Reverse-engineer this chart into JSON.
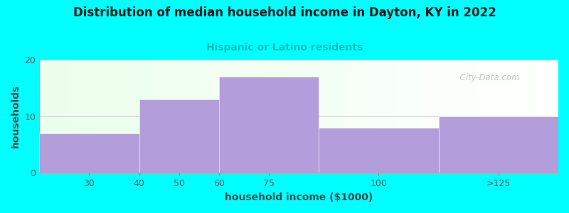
{
  "title": "Distribution of median household income in Dayton, KY in 2022",
  "subtitle": "Hispanic or Latino residents",
  "subtitle_color": "#00b8b8",
  "title_color": "#1a1a1a",
  "xlabel": "household income ($1000)",
  "ylabel": "households",
  "bar_color": "#b39ddb",
  "bar_edgecolor": "#e8e8f8",
  "background_outer": "#00ffff",
  "ylim": [
    0,
    20
  ],
  "yticks": [
    0,
    10,
    20
  ],
  "bin_edges": [
    15,
    40,
    60,
    85,
    115,
    145
  ],
  "bar_heights": [
    7,
    13,
    17,
    8,
    10
  ],
  "xtick_labels": [
    "30",
    "40",
    "50",
    "60",
    "75",
    "100",
    ">125"
  ],
  "xtick_data_positions": [
    27.5,
    40,
    50,
    60,
    72.5,
    100,
    130
  ],
  "grid_color": "#cccccc",
  "watermark": "  City-Data.com"
}
